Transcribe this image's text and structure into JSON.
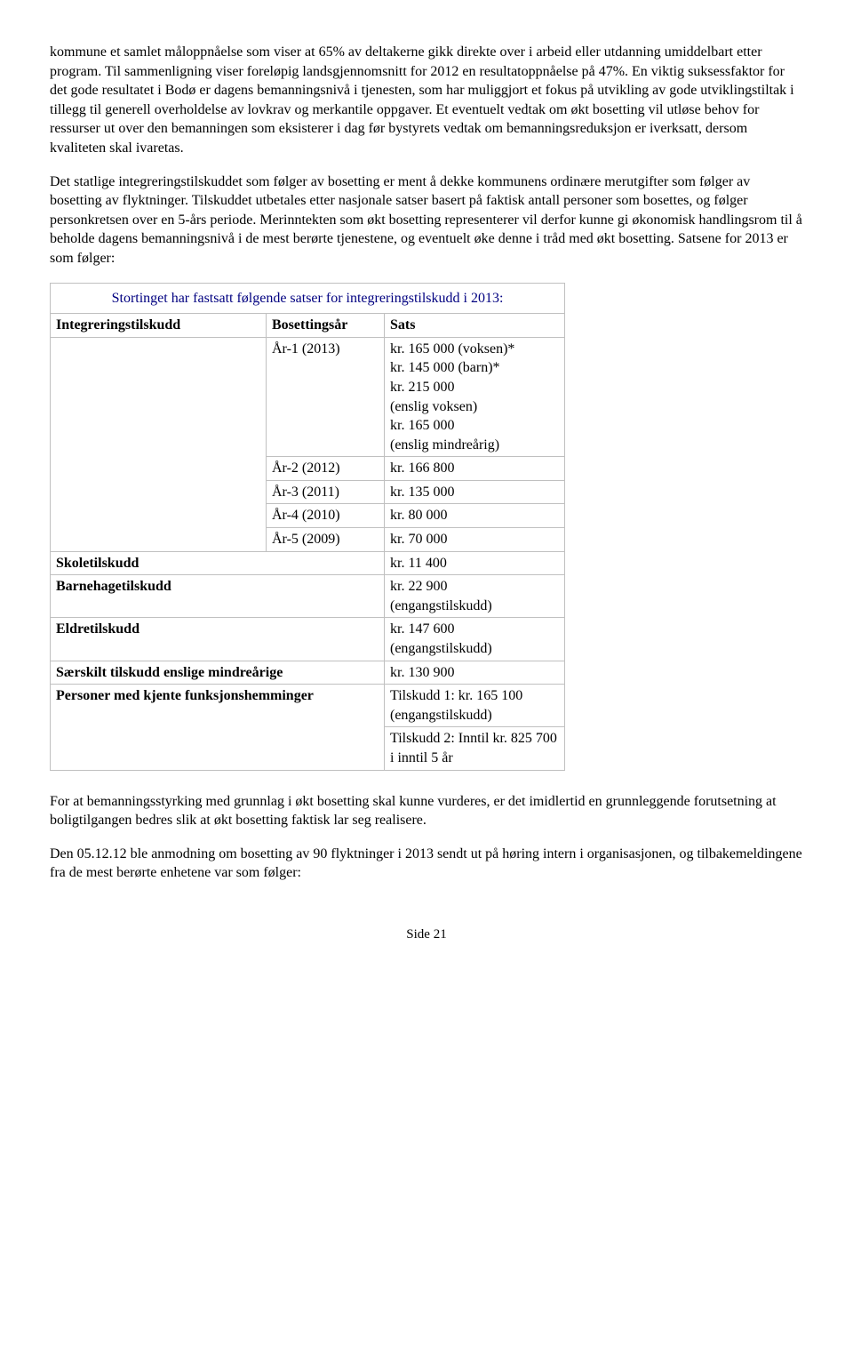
{
  "paragraphs": {
    "p1": "kommune et samlet måloppnåelse som viser at 65% av deltakerne gikk direkte over i arbeid eller utdanning umiddelbart etter program.",
    "p2": "Til sammenligning viser foreløpig landsgjennomsnitt for 2012 en resultatoppnåelse på 47%. En viktig suksessfaktor for det gode resultatet i Bodø er dagens bemanningsnivå i tjenesten, som har muliggjort et fokus på utvikling av gode utviklingstiltak i tillegg til generell overholdelse av lovkrav og merkantile oppgaver. Et eventuelt vedtak om økt bosetting vil utløse behov for ressurser ut over den bemanningen som eksisterer i dag før bystyrets vedtak om bemanningsreduksjon er iverksatt, dersom kvaliteten skal ivaretas.",
    "p3": "Det statlige integreringstilskuddet som følger av bosetting er ment å dekke kommunens ordinære merutgifter som følger av bosetting av flyktninger. Tilskuddet utbetales etter nasjonale satser basert på faktisk antall personer som bosettes, og følger personkretsen over en 5-års periode. Merinntekten som økt bosetting representerer vil derfor kunne gi økonomisk handlingsrom til å beholde dagens bemanningsnivå i de mest berørte tjenestene, og eventuelt øke denne i tråd med økt bosetting. Satsene for 2013 er som følger:",
    "p4": "For at bemanningsstyrking med grunnlag i økt bosetting skal kunne vurderes, er det imidlertid en grunnleggende forutsetning at boligtilgangen bedres slik at økt bosetting faktisk lar seg realisere.",
    "p5": "Den 05.12.12 ble anmodning om bosetting av 90 flyktninger i 2013 sendt ut på høring intern i organisasjonen, og tilbakemeldingene fra de mest berørte enhetene var som følger:"
  },
  "table": {
    "title": "Stortinget har fastsatt følgende satser for integreringstilskudd i 2013:",
    "headers": {
      "col1": "Integreringstilskudd",
      "col2": "Bosettingsår",
      "col3": "Sats"
    },
    "rows": {
      "r1_year": "År-1 (2013)",
      "r1_sats": "kr. 165 000 (voksen)*\nkr. 145 000 (barn)*\nkr. 215 000\n(enslig voksen)\nkr. 165 000\n(enslig mindreårig)",
      "r2_year": "År-2 (2012)",
      "r2_sats": "kr. 166 800",
      "r3_year": "År-3 (2011)",
      "r3_sats": "kr. 135 000",
      "r4_year": "År-4 (2010)",
      "r4_sats": "kr. 80 000",
      "r5_year": "År-5 (2009)",
      "r5_sats": "kr. 70 000",
      "r6_label": "Skoletilskudd",
      "r6_sats": "kr. 11 400",
      "r7_label": "Barnehagetilskudd",
      "r7_sats": "kr. 22 900\n(engangstilskudd)",
      "r8_label": "Eldretilskudd",
      "r8_sats": "kr. 147 600\n(engangstilskudd)",
      "r9_label": "Særskilt tilskudd enslige mindreårige",
      "r9_sats": "kr. 130 900",
      "r10_label": "Personer med kjente funksjonshemminger",
      "r10_sats_a": "Tilskudd 1: kr. 165 100\n(engangstilskudd)",
      "r10_sats_b": "Tilskudd 2: Inntil kr. 825 700 i inntil 5 år"
    }
  },
  "page_number": "Side 21"
}
